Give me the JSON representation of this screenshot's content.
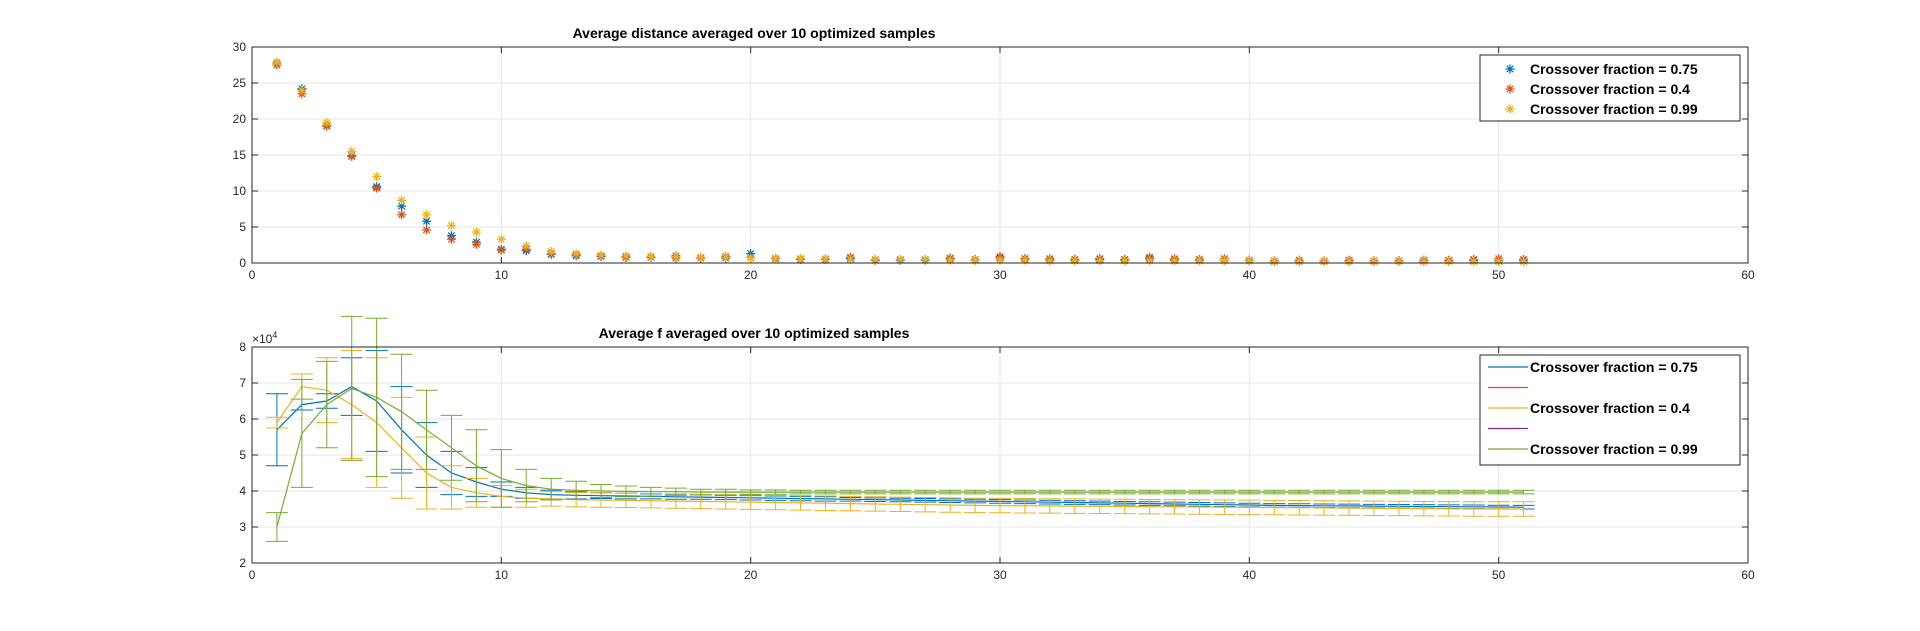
{
  "chart_data": [
    {
      "type": "scatter",
      "title": "Average distance averaged over 10 optimized samples",
      "xlabel": "",
      "ylabel": "",
      "xlim": [
        0,
        60
      ],
      "ylim": [
        0,
        30
      ],
      "xticks": [
        0,
        10,
        20,
        30,
        40,
        50,
        60
      ],
      "yticks": [
        0,
        5,
        10,
        15,
        20,
        25,
        30
      ],
      "grid": true,
      "legend_position": "top-right",
      "marker": "*",
      "x": [
        1,
        2,
        3,
        4,
        5,
        6,
        7,
        8,
        9,
        10,
        11,
        12,
        13,
        14,
        15,
        16,
        17,
        18,
        19,
        20,
        21,
        22,
        23,
        24,
        25,
        26,
        27,
        28,
        29,
        30,
        31,
        32,
        33,
        34,
        35,
        36,
        37,
        38,
        39,
        40,
        41,
        42,
        43,
        44,
        45,
        46,
        47,
        48,
        49,
        50,
        51
      ],
      "series": [
        {
          "name": "Crossover fraction = 0.75",
          "color": "#0072BD",
          "values": [
            27.8,
            24.2,
            19.1,
            14.9,
            10.6,
            7.9,
            5.8,
            3.8,
            2.9,
            1.9,
            1.7,
            1.2,
            1.0,
            0.9,
            0.8,
            0.8,
            1.0,
            0.7,
            0.7,
            1.3,
            0.6,
            0.5,
            0.5,
            0.6,
            0.4,
            0.4,
            0.4,
            0.6,
            0.4,
            0.7,
            0.6,
            0.4,
            0.4,
            0.5,
            0.4,
            0.6,
            0.4,
            0.4,
            0.3,
            0.3,
            0.2,
            0.2,
            0.2,
            0.3,
            0.2,
            0.3,
            0.2,
            0.3,
            0.4,
            0.3,
            0.3
          ]
        },
        {
          "name": "Crossover fraction = 0.4",
          "color": "#D95319",
          "values": [
            27.5,
            23.5,
            19.0,
            14.8,
            10.4,
            6.7,
            4.6,
            3.3,
            2.6,
            1.8,
            1.9,
            1.3,
            1.2,
            1.0,
            0.8,
            0.9,
            0.7,
            0.7,
            0.9,
            0.7,
            0.6,
            0.6,
            0.5,
            0.8,
            0.4,
            0.5,
            0.5,
            0.7,
            0.5,
            0.9,
            0.6,
            0.6,
            0.5,
            0.6,
            0.5,
            0.8,
            0.6,
            0.5,
            0.6,
            0.4,
            0.3,
            0.4,
            0.3,
            0.4,
            0.3,
            0.3,
            0.4,
            0.4,
            0.5,
            0.6,
            0.5
          ]
        },
        {
          "name": "Crossover fraction = 0.99",
          "color": "#EDB120",
          "values": [
            27.9,
            24.0,
            19.5,
            15.5,
            12.0,
            8.7,
            6.7,
            5.2,
            4.3,
            3.3,
            2.4,
            1.6,
            1.3,
            1.1,
            1.0,
            0.9,
            0.9,
            0.8,
            0.8,
            0.7,
            0.7,
            0.6,
            0.6,
            0.5,
            0.5,
            0.5,
            0.5,
            0.4,
            0.4,
            0.4,
            0.4,
            0.3,
            0.3,
            0.3,
            0.3,
            0.3,
            0.3,
            0.3,
            0.3,
            0.3,
            0.2,
            0.2,
            0.2,
            0.2,
            0.2,
            0.2,
            0.2,
            0.2,
            0.2,
            0.2,
            0.2
          ]
        }
      ]
    },
    {
      "type": "line",
      "title": "Average f averaged over 10 optimized samples",
      "xlabel": "",
      "ylabel": "",
      "y_exponent_label": "×10⁴",
      "y_exponent_base": "×10",
      "y_exponent_power": "4",
      "xlim": [
        0,
        60
      ],
      "ylim": [
        20000,
        80000
      ],
      "xticks": [
        0,
        10,
        20,
        30,
        40,
        50,
        60
      ],
      "yticks": [
        20000,
        30000,
        40000,
        50000,
        60000,
        70000,
        80000
      ],
      "ytick_labels": [
        "2",
        "3",
        "4",
        "5",
        "6",
        "7",
        "8"
      ],
      "grid": true,
      "legend_position": "top-right",
      "legend_entries": [
        {
          "label": "Crossover fraction = 0.75",
          "color": "#0072BD"
        },
        {
          "label": "",
          "color": "#D95319"
        },
        {
          "label": "Crossover fraction = 0.4",
          "color": "#EDB120"
        },
        {
          "label": "",
          "color": "#7E2F8E"
        },
        {
          "label": "Crossover fraction = 0.99",
          "color": "#77AC30"
        }
      ],
      "x": [
        1,
        2,
        3,
        4,
        5,
        6,
        7,
        8,
        9,
        10,
        11,
        12,
        13,
        14,
        15,
        16,
        17,
        18,
        19,
        20,
        21,
        22,
        23,
        24,
        25,
        26,
        27,
        28,
        29,
        30,
        31,
        32,
        33,
        34,
        35,
        36,
        37,
        38,
        39,
        40,
        41,
        42,
        43,
        44,
        45,
        46,
        47,
        48,
        49,
        50,
        51
      ],
      "series": [
        {
          "name": "Crossover fraction = 0.75",
          "color": "#0072BD",
          "values": [
            57000,
            64000,
            65000,
            69000,
            65000,
            57000,
            50000,
            45000,
            42500,
            40500,
            39500,
            39000,
            38800,
            38700,
            38600,
            38500,
            38400,
            38300,
            38200,
            38100,
            38000,
            37900,
            37800,
            37700,
            37600,
            37500,
            37400,
            37300,
            37200,
            37100,
            37000,
            36900,
            36800,
            36700,
            36600,
            36500,
            36400,
            36300,
            36200,
            36100,
            36000,
            35950,
            35900,
            35850,
            35800,
            35750,
            35700,
            35650,
            35600,
            35550,
            35500
          ],
          "err": [
            10000,
            1500,
            2000,
            8000,
            14000,
            12000,
            9000,
            6000,
            4000,
            2000,
            1500,
            1200,
            1000,
            800,
            800,
            700,
            700,
            600,
            600,
            600,
            600,
            600,
            600,
            500,
            500,
            500,
            500,
            500,
            500,
            500,
            500,
            500,
            500,
            500,
            500,
            500,
            500,
            500,
            500,
            500,
            500,
            500,
            500,
            500,
            500,
            500,
            500,
            500,
            500,
            500,
            500
          ]
        },
        {
          "name": "Crossover fraction = 0.4",
          "color": "#EDB120",
          "values": [
            59000,
            69000,
            68000,
            64000,
            59000,
            52000,
            45000,
            41000,
            39500,
            38500,
            38000,
            37800,
            37600,
            37500,
            37400,
            37300,
            37200,
            37100,
            37000,
            36900,
            36800,
            36700,
            36600,
            36500,
            36400,
            36300,
            36200,
            36100,
            36000,
            35950,
            35900,
            35850,
            35800,
            35750,
            35700,
            35650,
            35600,
            35550,
            35500,
            35450,
            35400,
            35350,
            35300,
            35250,
            35200,
            35150,
            35100,
            35050,
            35000,
            35000,
            35000
          ],
          "err": [
            1500,
            3500,
            9000,
            15000,
            18000,
            14000,
            10000,
            6000,
            4000,
            3000,
            2500,
            2000,
            2000,
            2000,
            2000,
            2000,
            2000,
            2000,
            2000,
            2000,
            2000,
            2000,
            2000,
            2000,
            2000,
            2000,
            2000,
            2000,
            2000,
            2000,
            2000,
            2000,
            2000,
            2000,
            2000,
            2000,
            2000,
            2000,
            2000,
            2000,
            2000,
            2000,
            2000,
            2000,
            2000,
            2000,
            2000,
            2000,
            2000,
            2000,
            2000
          ]
        },
        {
          "name": "Crossover fraction = 0.99",
          "color": "#77AC30",
          "values": [
            30000,
            56000,
            64000,
            68500,
            66000,
            62000,
            57000,
            52000,
            47000,
            43500,
            41500,
            40500,
            40200,
            40000,
            39900,
            39800,
            39800,
            39700,
            39700,
            39700,
            39700,
            39700,
            39700,
            39700,
            39700,
            39700,
            39700,
            39700,
            39700,
            39700,
            39700,
            39700,
            39700,
            39700,
            39700,
            39700,
            39700,
            39700,
            39700,
            39700,
            39700,
            39700,
            39700,
            39700,
            39700,
            39700,
            39700,
            39700,
            39700,
            39700,
            39700
          ],
          "err": [
            4000,
            15000,
            12000,
            20000,
            22000,
            16000,
            11000,
            9000,
            10000,
            8000,
            4500,
            3000,
            2500,
            1800,
            1500,
            1200,
            1000,
            800,
            800,
            600,
            600,
            500,
            500,
            500,
            500,
            500,
            500,
            500,
            500,
            500,
            500,
            500,
            500,
            500,
            500,
            500,
            500,
            500,
            500,
            500,
            500,
            500,
            500,
            500,
            500,
            500,
            500,
            500,
            500,
            500,
            500
          ]
        }
      ]
    }
  ]
}
